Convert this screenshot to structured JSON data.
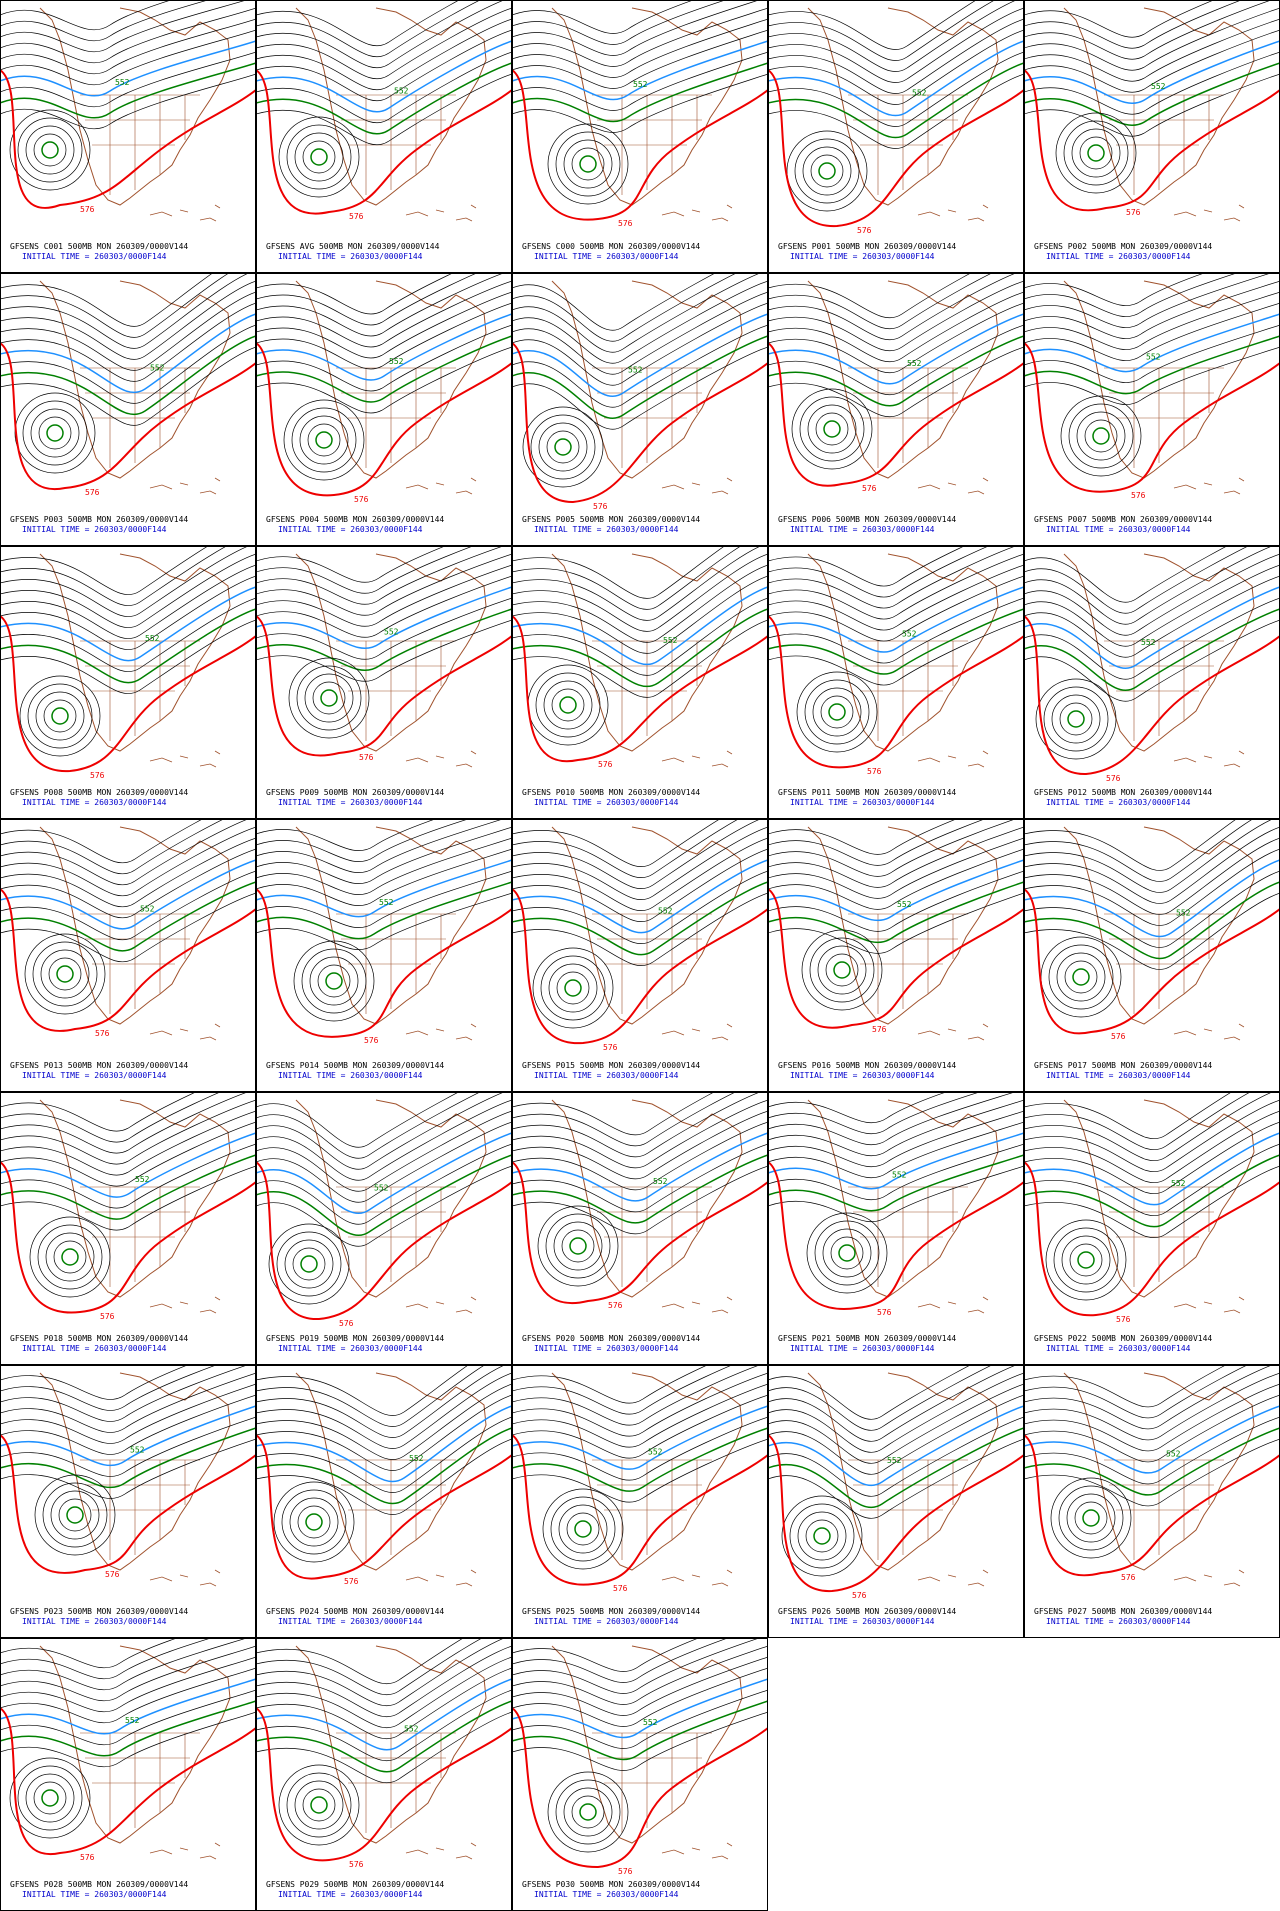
{
  "panels": [
    {
      "title": "GFSENS C001 500MB MON 260309/0000V144",
      "subtitle": "INITIAL TIME = 260303/0000F144",
      "labels": [
        "552",
        "576"
      ]
    },
    {
      "title": "GFSENS AVG 500MB MON 260309/0000V144",
      "subtitle": "INITIAL TIME = 260303/0000F144",
      "labels": [
        "552",
        "576"
      ]
    },
    {
      "title": "GFSENS C000 500MB MON 260309/0000V144",
      "subtitle": "INITIAL TIME = 260303/0000F144",
      "labels": [
        "552",
        "576"
      ]
    },
    {
      "title": "GFSENS P001 500MB MON 260309/0000V144",
      "subtitle": "INITIAL TIME = 260303/0000F144",
      "labels": [
        "552",
        "576"
      ]
    },
    {
      "title": "GFSENS P002 500MB MON 260309/0000V144",
      "subtitle": "INITIAL TIME = 260303/0000F144",
      "labels": [
        "552",
        "576"
      ]
    },
    {
      "title": "GFSENS P003 500MB MON 260309/0000V144",
      "subtitle": "INITIAL TIME = 260303/0000F144",
      "labels": [
        "552",
        "576"
      ]
    },
    {
      "title": "GFSENS P004 500MB MON 260309/0000V144",
      "subtitle": "INITIAL TIME = 260303/0000F144",
      "labels": [
        "552",
        "576"
      ]
    },
    {
      "title": "GFSENS P005 500MB MON 260309/0000V144",
      "subtitle": "INITIAL TIME = 260303/0000F144",
      "labels": [
        "552",
        "576"
      ]
    },
    {
      "title": "GFSENS P006 500MB MON 260309/0000V144",
      "subtitle": "INITIAL TIME = 260303/0000F144",
      "labels": [
        "552",
        "576"
      ]
    },
    {
      "title": "GFSENS P007 500MB MON 260309/0000V144",
      "subtitle": "INITIAL TIME = 260303/0000F144",
      "labels": [
        "552",
        "576"
      ]
    },
    {
      "title": "GFSENS P008 500MB MON 260309/0000V144",
      "subtitle": "INITIAL TIME = 260303/0000F144",
      "labels": [
        "552",
        "576"
      ]
    },
    {
      "title": "GFSENS P009 500MB MON 260309/0000V144",
      "subtitle": "INITIAL TIME = 260303/0000F144",
      "labels": [
        "552",
        "576"
      ]
    },
    {
      "title": "GFSENS P010 500MB MON 260309/0000V144",
      "subtitle": "INITIAL TIME = 260303/0000F144",
      "labels": [
        "552",
        "576"
      ]
    },
    {
      "title": "GFSENS P011 500MB MON 260309/0000V144",
      "subtitle": "INITIAL TIME = 260303/0000F144",
      "labels": [
        "552",
        "576"
      ]
    },
    {
      "title": "GFSENS P012 500MB MON 260309/0000V144",
      "subtitle": "INITIAL TIME = 260303/0000F144",
      "labels": [
        "552",
        "576"
      ]
    },
    {
      "title": "GFSENS P013 500MB MON 260309/0000V144",
      "subtitle": "INITIAL TIME = 260303/0000F144",
      "labels": [
        "552",
        "576"
      ]
    },
    {
      "title": "GFSENS P014 500MB MON 260309/0000V144",
      "subtitle": "INITIAL TIME = 260303/0000F144",
      "labels": [
        "552",
        "576"
      ]
    },
    {
      "title": "GFSENS P015 500MB MON 260309/0000V144",
      "subtitle": "INITIAL TIME = 260303/0000F144",
      "labels": [
        "552",
        "576"
      ]
    },
    {
      "title": "GFSENS P016 500MB MON 260309/0000V144",
      "subtitle": "INITIAL TIME = 260303/0000F144",
      "labels": [
        "552",
        "576"
      ]
    },
    {
      "title": "GFSENS P017 500MB MON 260309/0000V144",
      "subtitle": "INITIAL TIME = 260303/0000F144",
      "labels": [
        "552",
        "576"
      ]
    },
    {
      "title": "GFSENS P018 500MB MON 260309/0000V144",
      "subtitle": "INITIAL TIME = 260303/0000F144",
      "labels": [
        "552",
        "576"
      ]
    },
    {
      "title": "GFSENS P019 500MB MON 260309/0000V144",
      "subtitle": "INITIAL TIME = 260303/0000F144",
      "labels": [
        "552",
        "576"
      ]
    },
    {
      "title": "GFSENS P020 500MB MON 260309/0000V144",
      "subtitle": "INITIAL TIME = 260303/0000F144",
      "labels": [
        "552",
        "576"
      ]
    },
    {
      "title": "GFSENS P021 500MB MON 260309/0000V144",
      "subtitle": "INITIAL TIME = 260303/0000F144",
      "labels": [
        "552",
        "576"
      ]
    },
    {
      "title": "GFSENS P022 500MB MON 260309/0000V144",
      "subtitle": "INITIAL TIME = 260303/0000F144",
      "labels": [
        "552",
        "576"
      ]
    },
    {
      "title": "GFSENS P023 500MB MON 260309/0000V144",
      "subtitle": "INITIAL TIME = 260303/0000F144",
      "labels": [
        "552",
        "576"
      ]
    },
    {
      "title": "GFSENS P024 500MB MON 260309/0000V144",
      "subtitle": "INITIAL TIME = 260303/0000F144",
      "labels": [
        "552",
        "576"
      ]
    },
    {
      "title": "GFSENS P025 500MB MON 260309/0000V144",
      "subtitle": "INITIAL TIME = 260303/0000F144",
      "labels": [
        "552",
        "576"
      ]
    },
    {
      "title": "GFSENS P026 500MB MON 260309/0000V144",
      "subtitle": "INITIAL TIME = 260303/0000F144",
      "labels": [
        "552",
        "576"
      ]
    },
    {
      "title": "GFSENS P027 500MB MON 260309/0000V144",
      "subtitle": "INITIAL TIME = 260303/0000F144",
      "labels": [
        "552",
        "576"
      ]
    },
    {
      "title": "GFSENS P028 500MB MON 260309/0000V144",
      "subtitle": "INITIAL TIME = 260303/0000F144",
      "labels": [
        "552",
        "576"
      ]
    },
    {
      "title": "GFSENS P029 500MB MON 260309/0000V144",
      "subtitle": "INITIAL TIME = 260303/0000F144",
      "labels": [
        "552",
        "576"
      ]
    },
    {
      "title": "GFSENS P030 500MB MON 260309/0000V144",
      "subtitle": "INITIAL TIME = 260303/0000F144",
      "labels": [
        "552",
        "576"
      ]
    }
  ]
}
